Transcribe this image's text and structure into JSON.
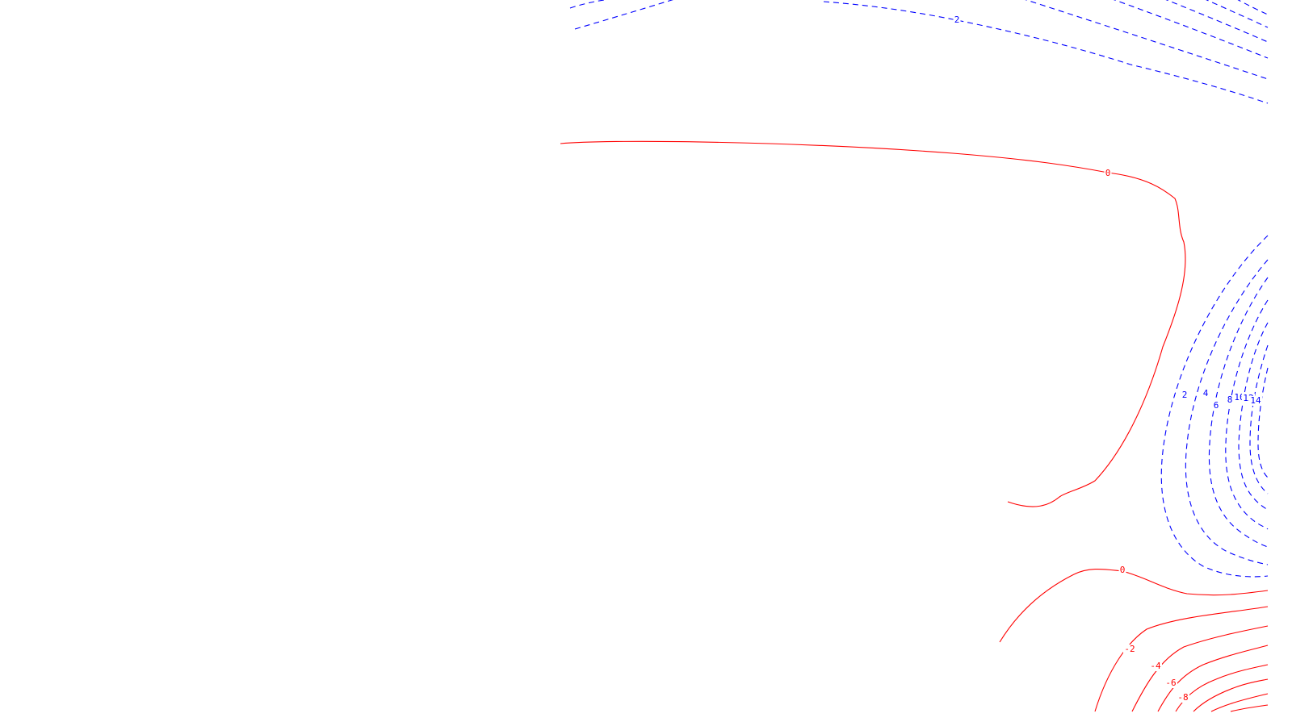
{
  "chart_data": {
    "type": "contour",
    "title": "",
    "xlabel": "",
    "ylabel": "",
    "colors": {
      "positive": "#0000ff",
      "zero_and_negative": "#ff0000",
      "background": "#ffffff"
    },
    "line_styles": {
      "positive": "dashed",
      "zero_and_negative": "solid"
    },
    "levels_positive": [
      2,
      4,
      6,
      8,
      10,
      12,
      14
    ],
    "levels_zero": [
      0
    ],
    "levels_negative": [
      -2,
      -4,
      -6,
      -8
    ],
    "contour_labels": [
      {
        "id": "blue-top-2",
        "text": "2",
        "color": "positive"
      },
      {
        "id": "red-upper-0",
        "text": "0",
        "color": "zero_and_negative"
      },
      {
        "id": "blue-2",
        "text": "2",
        "color": "positive"
      },
      {
        "id": "blue-4",
        "text": "4",
        "color": "positive"
      },
      {
        "id": "blue-6",
        "text": "6",
        "color": "positive"
      },
      {
        "id": "blue-8",
        "text": "8",
        "color": "positive"
      },
      {
        "id": "blue-10",
        "text": "10",
        "color": "positive"
      },
      {
        "id": "blue-12",
        "text": "12",
        "color": "positive"
      },
      {
        "id": "blue-14",
        "text": "14",
        "color": "positive"
      },
      {
        "id": "red-lower-0",
        "text": "0",
        "color": "zero_and_negative"
      },
      {
        "id": "red-neg2",
        "text": "-2",
        "color": "zero_and_negative"
      },
      {
        "id": "red-neg4",
        "text": "-4",
        "color": "zero_and_negative"
      },
      {
        "id": "red-neg6",
        "text": "-6",
        "color": "zero_and_negative"
      },
      {
        "id": "red-neg8",
        "text": "-8",
        "color": "zero_and_negative"
      }
    ]
  }
}
